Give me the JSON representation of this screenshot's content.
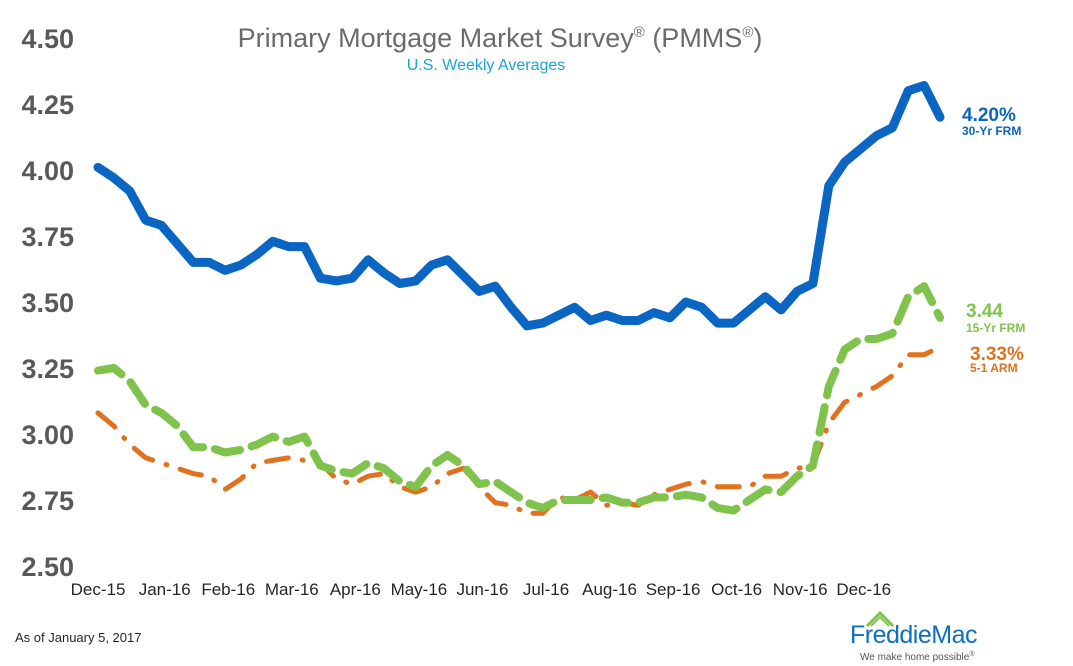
{
  "chart_data": {
    "type": "line",
    "title": "Primary Mortgage Market Survey",
    "title_mark": "®",
    "title_paren": "(PMMS",
    "title_paren_mark": "®",
    "title_close": ")",
    "subtitle": "U.S. Weekly Averages",
    "ylim": [
      2.5,
      4.5
    ],
    "yticks": [
      "2.50",
      "2.75",
      "3.00",
      "3.25",
      "3.50",
      "3.75",
      "4.00",
      "4.25",
      "4.50"
    ],
    "ytick_values": [
      2.5,
      2.75,
      3.0,
      3.25,
      3.5,
      3.75,
      4.0,
      4.25,
      4.5
    ],
    "xticks": [
      "Dec-15",
      "Jan-16",
      "Feb-16",
      "Mar-16",
      "Apr-16",
      "May-16",
      "Jun-16",
      "Jul-16",
      "Aug-16",
      "Sep-16",
      "Oct-16",
      "Nov-16",
      "Dec-16"
    ],
    "xtick_weeks": [
      0,
      4.2,
      8.2,
      12.2,
      16.2,
      20.2,
      24.2,
      28.2,
      32.2,
      36.2,
      40.2,
      44.2,
      48.2
    ],
    "series": [
      {
        "name": "30-Yr FRM",
        "color": "#0a66c2",
        "style": "solid",
        "last_label": "4.20%",
        "values": [
          4.01,
          3.97,
          3.92,
          3.81,
          3.79,
          3.72,
          3.65,
          3.65,
          3.62,
          3.64,
          3.68,
          3.73,
          3.71,
          3.71,
          3.59,
          3.58,
          3.59,
          3.66,
          3.61,
          3.57,
          3.58,
          3.64,
          3.66,
          3.6,
          3.54,
          3.56,
          3.48,
          3.41,
          3.42,
          3.45,
          3.48,
          3.43,
          3.45,
          3.43,
          3.43,
          3.46,
          3.44,
          3.5,
          3.48,
          3.42,
          3.42,
          3.47,
          3.52,
          3.47,
          3.54,
          3.57,
          3.94,
          4.03,
          4.08,
          4.13,
          4.16,
          4.3,
          4.32,
          4.2
        ]
      },
      {
        "name": "15-Yr FRM",
        "color": "#7fc34c",
        "style": "dashed",
        "last_label": "3.44",
        "values": [
          3.24,
          3.25,
          3.2,
          3.11,
          3.08,
          3.03,
          2.95,
          2.95,
          2.93,
          2.94,
          2.96,
          2.99,
          2.97,
          2.99,
          2.88,
          2.86,
          2.85,
          2.89,
          2.87,
          2.82,
          2.8,
          2.88,
          2.92,
          2.88,
          2.81,
          2.82,
          2.78,
          2.74,
          2.72,
          2.75,
          2.75,
          2.75,
          2.76,
          2.74,
          2.74,
          2.76,
          2.76,
          2.77,
          2.76,
          2.72,
          2.71,
          2.75,
          2.79,
          2.78,
          2.84,
          2.88,
          3.18,
          3.32,
          3.36,
          3.36,
          3.38,
          3.52,
          3.56,
          3.44
        ]
      },
      {
        "name": "5-1 ARM",
        "color": "#e0711f",
        "style": "dashdot",
        "last_label": "3.33%",
        "values": [
          3.08,
          3.03,
          2.96,
          2.91,
          2.89,
          2.87,
          2.85,
          2.84,
          2.79,
          2.83,
          2.89,
          2.9,
          2.91,
          2.9,
          2.89,
          2.83,
          2.81,
          2.84,
          2.85,
          2.8,
          2.78,
          2.8,
          2.85,
          2.87,
          2.8,
          2.74,
          2.73,
          2.7,
          2.7,
          2.76,
          2.75,
          2.78,
          2.73,
          2.74,
          2.73,
          2.77,
          2.79,
          2.81,
          2.82,
          2.8,
          2.8,
          2.8,
          2.84,
          2.84,
          2.87,
          2.88,
          3.04,
          3.12,
          3.15,
          3.18,
          3.22,
          3.3,
          3.3,
          3.33
        ]
      }
    ],
    "grid": false
  },
  "footer": {
    "as_of": "As of January 5, 2017",
    "logo": "FreddieMac",
    "tagline": "We make home possible",
    "tagline_mark": "®"
  }
}
